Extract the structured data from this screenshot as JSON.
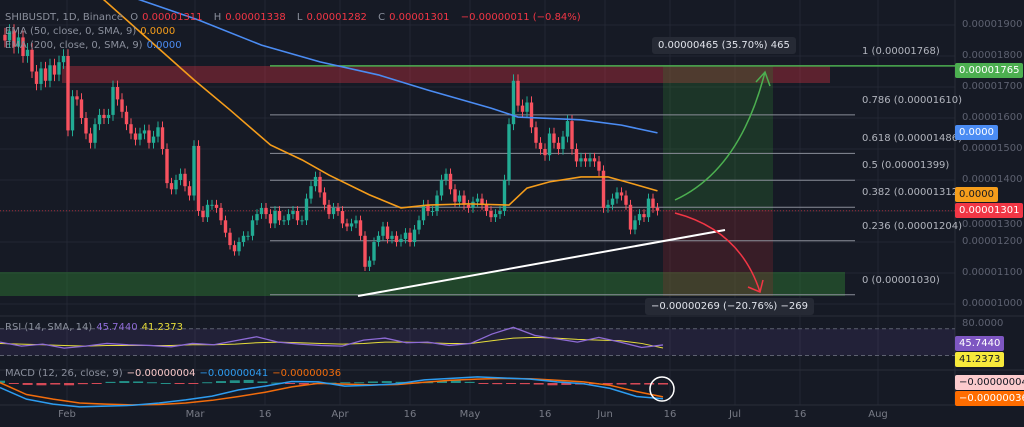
{
  "legend": {
    "symbol": "SHIBUSDT, 1D, Binance",
    "open_label": "O",
    "open": "0.00001311",
    "high_label": "H",
    "high": "0.00001338",
    "low_label": "L",
    "low": "0.00001282",
    "close_label": "C",
    "close": "0.00001301",
    "change": "−0.00000011 (−0.84%)",
    "ema50": "EMA (50, close, 0, SMA, 9)",
    "ema50_value": "0.0000",
    "ema200": "EMA (200, close, 0, SMA, 9)",
    "ema200_value": "0.0000",
    "rsi": "RSI (14, SMA, 14)",
    "rsi_value": "45.7440",
    "rsi_sma_value": "41.2373",
    "macd": "MACD (12, 26, close, 9)",
    "macd_hist": "−0.00000004",
    "macd_value": "−0.00000041",
    "macd_signal": "−0.00000036"
  },
  "price_axis": [
    "0.00001900",
    "0.00001800",
    "0.00001700",
    "0.00001600",
    "0.00001500",
    "0.00001400",
    "0.00001300",
    "0.00001200",
    "0.00001100",
    "0.00001000"
  ],
  "rsi_axis": [
    "80.0000"
  ],
  "time_axis": [
    "Feb",
    "Mar",
    "16",
    "Apr",
    "16",
    "May",
    "16",
    "Jun",
    "16",
    "Jul",
    "16",
    "Aug"
  ],
  "price_tags": {
    "target": "0.00001765",
    "ema200": "0.0000",
    "ema50": "0.0000",
    "last": "0.00001301",
    "rsi": "45.7440",
    "rsi_sma": "41.2373",
    "macd_hist": "−0.00000004",
    "macd_signal": "−0.00000036"
  },
  "fib_levels": [
    {
      "label": "1 (0.00001768)",
      "price": 1.768e-05
    },
    {
      "label": "0.786 (0.00001610)",
      "price": 1.61e-05
    },
    {
      "label": "0.618 (0.00001486)",
      "price": 1.486e-05
    },
    {
      "label": "0.5 (0.00001399)",
      "price": 1.399e-05
    },
    {
      "label": "0.382 (0.00001312)",
      "price": 1.312e-05
    },
    {
      "label": "0.236 (0.00001204)",
      "price": 1.204e-05
    },
    {
      "label": "0 (0.00001030)",
      "price": 1.03e-05
    }
  ],
  "measurements": {
    "up": "0.00000465 (35.70%) 465",
    "down": "−0.00000269 (−20.76%) −269"
  },
  "colors": {
    "up": "#22ab94",
    "down": "#f7525f",
    "ema50": "#f59d1b",
    "ema200": "#4b8cf3",
    "rsi": "#8e6bd6",
    "rsi_sma": "#e6dd3b",
    "macd": "#2d9cf0",
    "signal": "#f26c0c",
    "target": "#4caf50"
  },
  "chart_data": {
    "type": "candlestick",
    "symbol": "SHIBUSDT",
    "interval": "1D",
    "ylim": [
      9.7e-06,
      1.96e-05
    ],
    "closes": [
      1.85e-05,
      1.88e-05,
      1.83e-05,
      1.86e-05,
      1.8e-05,
      1.82e-05,
      1.75e-05,
      1.71e-05,
      1.76e-05,
      1.72e-05,
      1.77e-05,
      1.74e-05,
      1.78e-05,
      1.8e-05,
      1.56e-05,
      1.67e-05,
      1.66e-05,
      1.6e-05,
      1.55e-05,
      1.52e-05,
      1.58e-05,
      1.61e-05,
      1.6e-05,
      1.61e-05,
      1.7e-05,
      1.66e-05,
      1.62e-05,
      1.58e-05,
      1.55e-05,
      1.53e-05,
      1.55e-05,
      1.56e-05,
      1.52e-05,
      1.54e-05,
      1.57e-05,
      1.5e-05,
      1.39e-05,
      1.37e-05,
      1.4e-05,
      1.42e-05,
      1.38e-05,
      1.35e-05,
      1.51e-05,
      1.3e-05,
      1.28e-05,
      1.32e-05,
      1.32e-05,
      1.31e-05,
      1.27e-05,
      1.23e-05,
      1.19e-05,
      1.17e-05,
      1.2e-05,
      1.22e-05,
      1.22e-05,
      1.27e-05,
      1.29e-05,
      1.31e-05,
      1.29e-05,
      1.26e-05,
      1.3e-05,
      1.27e-05,
      1.27e-05,
      1.29e-05,
      1.3e-05,
      1.27e-05,
      1.27e-05,
      1.34e-05,
      1.38e-05,
      1.41e-05,
      1.36e-05,
      1.32e-05,
      1.29e-05,
      1.31e-05,
      1.3e-05,
      1.26e-05,
      1.25e-05,
      1.26e-05,
      1.27e-05,
      1.22e-05,
      1.12e-05,
      1.14e-05,
      1.2e-05,
      1.22e-05,
      1.25e-05,
      1.21e-05,
      1.22e-05,
      1.2e-05,
      1.21e-05,
      1.23e-05,
      1.2e-05,
      1.24e-05,
      1.27e-05,
      1.32e-05,
      1.3e-05,
      1.3e-05,
      1.35e-05,
      1.4e-05,
      1.42e-05,
      1.37e-05,
      1.33e-05,
      1.35e-05,
      1.32e-05,
      1.31e-05,
      1.33e-05,
      1.34e-05,
      1.32e-05,
      1.3e-05,
      1.28e-05,
      1.29e-05,
      1.3e-05,
      1.4e-05,
      1.58e-05,
      1.72e-05,
      1.64e-05,
      1.62e-05,
      1.65e-05,
      1.57e-05,
      1.52e-05,
      1.5e-05,
      1.48e-05,
      1.55e-05,
      1.52e-05,
      1.5e-05,
      1.54e-05,
      1.59e-05,
      1.5e-05,
      1.46e-05,
      1.47e-05,
      1.46e-05,
      1.47e-05,
      1.46e-05,
      1.43e-05,
      1.31e-05,
      1.32e-05,
      1.34e-05,
      1.36e-05,
      1.35e-05,
      1.32e-05,
      1.24e-05,
      1.27e-05,
      1.29e-05,
      1.28e-05,
      1.34e-05,
      1.31e-05,
      1.301e-05
    ],
    "ema50": [
      [
        22,
        1.981e-05
      ],
      [
        32,
        1.852e-05
      ],
      [
        42,
        1.723e-05
      ],
      [
        50,
        1.626e-05
      ],
      [
        59,
        1.513e-05
      ],
      [
        66,
        1.465e-05
      ],
      [
        72,
        1.416e-05
      ],
      [
        81,
        1.352e-05
      ],
      [
        88,
        1.31e-05
      ],
      [
        94,
        1.319e-05
      ],
      [
        103,
        1.323e-05
      ],
      [
        112,
        1.319e-05
      ],
      [
        116,
        1.374e-05
      ],
      [
        121,
        1.394e-05
      ],
      [
        128,
        1.41e-05
      ],
      [
        134,
        1.41e-05
      ],
      [
        138,
        1.394e-05
      ],
      [
        145,
        1.365e-05
      ]
    ],
    "ema200": [
      [
        30,
        1.981e-05
      ],
      [
        43,
        1.916e-05
      ],
      [
        57,
        1.835e-05
      ],
      [
        70,
        1.781e-05
      ],
      [
        83,
        1.739e-05
      ],
      [
        94,
        1.69e-05
      ],
      [
        108,
        1.632e-05
      ],
      [
        114,
        1.603e-05
      ],
      [
        128,
        1.594e-05
      ],
      [
        137,
        1.577e-05
      ],
      [
        145,
        1.552e-05
      ]
    ],
    "rsi": [
      50,
      44,
      47,
      41,
      44,
      48,
      46,
      45,
      43,
      48,
      46,
      52,
      58,
      50,
      47,
      45,
      44,
      53,
      56,
      49,
      50,
      45,
      48,
      62,
      72,
      60,
      55,
      50,
      57,
      50,
      42,
      45.74
    ],
    "rsi_sma": [
      48,
      47,
      46,
      45,
      44,
      45,
      45,
      45,
      45,
      46,
      46,
      47,
      49,
      50,
      49,
      48,
      47,
      48,
      50,
      50,
      49,
      48,
      48,
      52,
      56,
      57,
      56,
      54,
      53,
      52,
      48,
      41.24
    ],
    "macd_hist": [
      6e-08,
      -2e-08,
      -5e-08,
      -6e-08,
      -4e-08,
      -6e-08,
      -3e-08,
      -1e-08,
      3e-08,
      5e-08,
      4e-08,
      2e-08,
      0,
      -2e-08,
      -1e-08,
      2e-08,
      5e-08,
      7e-08,
      8e-08,
      4e-08,
      1e-08,
      -2e-08,
      -4e-08,
      -3e-08,
      1e-08,
      2e-08,
      2e-08,
      4e-08,
      5e-08,
      3e-08,
      1e-08,
      2e-08,
      6e-08,
      8e-08,
      3e-08,
      -2e-08,
      -3e-08,
      -2e-08,
      -3e-08,
      -4e-08,
      -6e-08,
      -5e-08,
      -4e-08,
      -3e-08,
      -4e-08,
      -4e-08,
      -4e-08,
      -4e-08,
      -4e-08
    ],
    "macd_line": [
      -1.2e-07,
      -4.2e-07,
      -5.5e-07,
      -6.2e-07,
      -6e-07,
      -5.8e-07,
      -5.2e-07,
      -4.4e-07,
      -3.4e-07,
      -1.8e-07,
      -8e-08,
      4e-08,
      3e-08,
      -8e-08,
      -6e-08,
      -2e-08,
      8e-08,
      1.2e-07,
      1.6e-07,
      1.3e-07,
      1e-07,
      3e-08,
      -2e-08,
      -1.4e-07,
      -3.5e-07,
      -4.1e-07
    ],
    "macd_signal": [
      1e-08,
      -3e-07,
      -4.2e-07,
      -5.2e-07,
      -5.5e-07,
      -5.7e-07,
      -5.6e-07,
      -5.2e-07,
      -4.5e-07,
      -3.5e-07,
      -2.4e-07,
      -1e-07,
      -1e-08,
      -3e-08,
      -5e-08,
      -4e-08,
      2e-08,
      7e-08,
      1e-07,
      1.2e-07,
      1.1e-07,
      7e-08,
      3e-08,
      -6e-08,
      -2.2e-07,
      -3.6e-07
    ]
  }
}
